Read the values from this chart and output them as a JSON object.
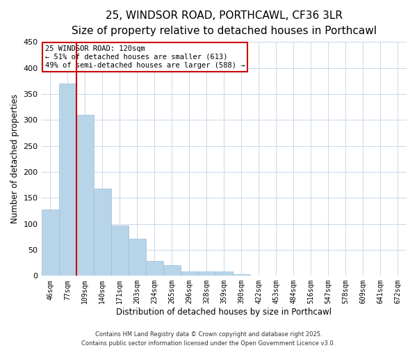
{
  "title": "25, WINDSOR ROAD, PORTHCAWL, CF36 3LR",
  "subtitle": "Size of property relative to detached houses in Porthcawl",
  "bar_labels": [
    "46sqm",
    "77sqm",
    "109sqm",
    "140sqm",
    "171sqm",
    "203sqm",
    "234sqm",
    "265sqm",
    "296sqm",
    "328sqm",
    "359sqm",
    "390sqm",
    "422sqm",
    "453sqm",
    "484sqm",
    "516sqm",
    "547sqm",
    "578sqm",
    "609sqm",
    "641sqm",
    "672sqm"
  ],
  "bar_values": [
    128,
    370,
    310,
    168,
    97,
    71,
    29,
    20,
    9,
    8,
    9,
    3,
    1,
    0,
    0,
    1,
    0,
    0,
    0,
    0,
    1
  ],
  "bar_color": "#b8d4e8",
  "bar_edge_color": "#9bbdd8",
  "vline_color": "#cc0000",
  "xlabel": "Distribution of detached houses by size in Porthcawl",
  "ylabel": "Number of detached properties",
  "ylim": [
    0,
    450
  ],
  "yticks": [
    0,
    50,
    100,
    150,
    200,
    250,
    300,
    350,
    400,
    450
  ],
  "annotation_title": "25 WINDSOR ROAD: 120sqm",
  "annotation_line1": "← 51% of detached houses are smaller (613)",
  "annotation_line2": "49% of semi-detached houses are larger (588) →",
  "annotation_box_color": "#ffffff",
  "annotation_box_edge": "#cc0000",
  "footnote1": "Contains HM Land Registry data © Crown copyright and database right 2025.",
  "footnote2": "Contains public sector information licensed under the Open Government Licence v3.0.",
  "background_color": "#ffffff",
  "grid_color": "#c8d8ec",
  "title_fontsize": 11,
  "subtitle_fontsize": 9
}
